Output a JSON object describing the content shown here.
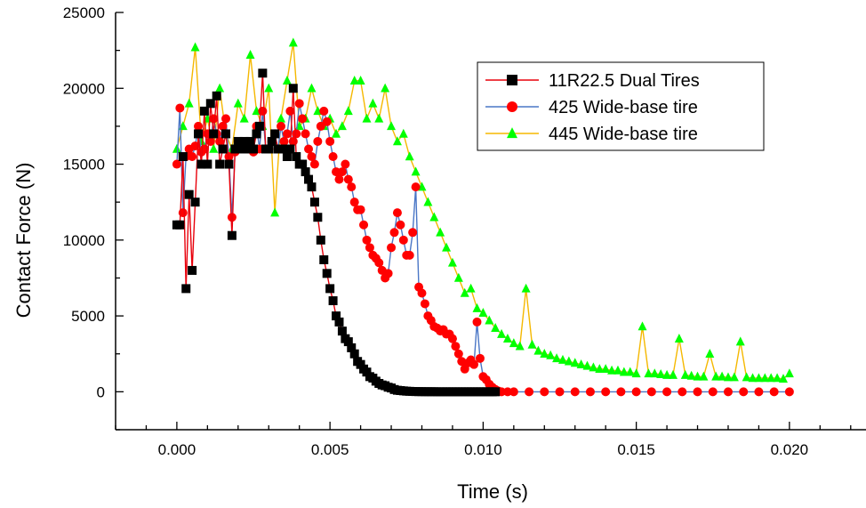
{
  "colors": {
    "axis": "#000000",
    "dual_line": "#e8000b",
    "dual_marker": "#000000",
    "wide425_line": "#4a76c6",
    "wide425_marker": "#ff0000",
    "wide445_line": "#f5b800",
    "wide445_marker": "#00ff00"
  },
  "chart_data": {
    "type": "line",
    "title": "",
    "xlabel": "Time (s)",
    "ylabel": "Contact Force (N)",
    "xlim": [
      -0.002,
      0.0225
    ],
    "ylim": [
      -2500,
      25000
    ],
    "x_ticks": [
      "0.000",
      "0.005",
      "0.010",
      "0.015",
      "0.020"
    ],
    "x_tick_values": [
      0.0,
      0.005,
      0.01,
      0.015,
      0.02
    ],
    "y_ticks": [
      "0",
      "5000",
      "10000",
      "15000",
      "20000",
      "25000"
    ],
    "y_tick_values": [
      0,
      5000,
      10000,
      15000,
      20000,
      25000
    ],
    "legend_position": "top-right",
    "grid": false,
    "series": [
      {
        "name": "11R22.5 Dual Tires",
        "marker": "square",
        "x": [
          0.0,
          0.0001,
          0.0002,
          0.0003,
          0.0004,
          0.0005,
          0.0006,
          0.0007,
          0.0008,
          0.0009,
          0.001,
          0.0011,
          0.0012,
          0.0013,
          0.0014,
          0.0015,
          0.0016,
          0.0017,
          0.0018,
          0.0019,
          0.002,
          0.0021,
          0.0022,
          0.0023,
          0.0024,
          0.0025,
          0.0026,
          0.0027,
          0.0028,
          0.0029,
          0.003,
          0.0031,
          0.0032,
          0.0033,
          0.0034,
          0.0035,
          0.0036,
          0.0037,
          0.0038,
          0.0039,
          0.004,
          0.0041,
          0.0042,
          0.0043,
          0.0044,
          0.0045,
          0.0046,
          0.0047,
          0.0048,
          0.0049,
          0.005,
          0.0051,
          0.0052,
          0.0053,
          0.0054,
          0.0055,
          0.0056,
          0.0057,
          0.0058,
          0.0059,
          0.006,
          0.0061,
          0.0062,
          0.0063,
          0.0064,
          0.0065,
          0.0066,
          0.0067,
          0.0068,
          0.0069,
          0.007,
          0.0071,
          0.0072,
          0.0073,
          0.0074,
          0.0075,
          0.0076,
          0.0077,
          0.0078,
          0.0079,
          0.008,
          0.0081,
          0.0082,
          0.0083,
          0.0084,
          0.0085,
          0.0086,
          0.0087,
          0.0088,
          0.0089,
          0.009,
          0.0091,
          0.0092,
          0.0093,
          0.0094,
          0.0095,
          0.0096,
          0.0097,
          0.0098,
          0.0099,
          0.01,
          0.0101,
          0.0102,
          0.0103,
          0.0104
        ],
        "y": [
          11000,
          11000,
          15500,
          6800,
          13000,
          8000,
          12500,
          17000,
          15000,
          18500,
          15000,
          19000,
          17000,
          19500,
          15000,
          16000,
          17000,
          15000,
          10300,
          16000,
          16500,
          16000,
          16500,
          16000,
          16500,
          16000,
          17000,
          17500,
          21000,
          16000,
          16000,
          16500,
          17000,
          16000,
          16000,
          16000,
          15500,
          16000,
          20000,
          15500,
          15000,
          15000,
          14500,
          14000,
          13500,
          12500,
          11500,
          10000,
          8700,
          7800,
          6800,
          6000,
          5000,
          4600,
          4000,
          3500,
          3300,
          2900,
          2500,
          2000,
          1800,
          1500,
          1300,
          1000,
          900,
          700,
          550,
          450,
          400,
          300,
          250,
          150,
          100,
          80,
          60,
          40,
          30,
          20,
          15,
          10,
          10,
          5,
          5,
          5,
          5,
          0,
          0,
          0,
          0,
          0,
          0,
          0,
          0,
          0,
          0,
          0,
          0,
          0,
          0,
          0,
          0,
          0,
          0,
          0,
          0
        ]
      },
      {
        "name": "425 Wide-base tire",
        "marker": "circle",
        "x": [
          0.0,
          0.0001,
          0.0002,
          0.0003,
          0.0004,
          0.0005,
          0.0006,
          0.0007,
          0.0008,
          0.0009,
          0.001,
          0.0011,
          0.0012,
          0.0013,
          0.0014,
          0.0015,
          0.0016,
          0.0017,
          0.0018,
          0.0019,
          0.002,
          0.0021,
          0.0022,
          0.0023,
          0.0024,
          0.0025,
          0.0026,
          0.0027,
          0.0028,
          0.0029,
          0.003,
          0.0031,
          0.0032,
          0.0033,
          0.0034,
          0.0035,
          0.0036,
          0.0037,
          0.0038,
          0.0039,
          0.004,
          0.0041,
          0.0042,
          0.0043,
          0.0044,
          0.0045,
          0.0046,
          0.0047,
          0.0048,
          0.0049,
          0.005,
          0.0051,
          0.0052,
          0.0053,
          0.0054,
          0.0055,
          0.0056,
          0.0057,
          0.0058,
          0.0059,
          0.006,
          0.0061,
          0.0062,
          0.0063,
          0.0064,
          0.0065,
          0.0066,
          0.0067,
          0.0068,
          0.0069,
          0.007,
          0.0071,
          0.0072,
          0.0073,
          0.0074,
          0.0075,
          0.0076,
          0.0077,
          0.0078,
          0.0079,
          0.008,
          0.0081,
          0.0082,
          0.0083,
          0.0084,
          0.0085,
          0.0086,
          0.0087,
          0.0088,
          0.0089,
          0.009,
          0.0091,
          0.0092,
          0.0093,
          0.0094,
          0.0095,
          0.0096,
          0.0097,
          0.0098,
          0.0099,
          0.01,
          0.0101,
          0.0102,
          0.0103,
          0.0104,
          0.0105,
          0.0106,
          0.0108,
          0.011,
          0.0115,
          0.012,
          0.0125,
          0.013,
          0.0135,
          0.014,
          0.0145,
          0.015,
          0.0155,
          0.016,
          0.0165,
          0.017,
          0.0175,
          0.018,
          0.0185,
          0.019,
          0.0195,
          0.02
        ],
        "y": [
          15000,
          18700,
          11800,
          15500,
          16000,
          15500,
          16200,
          17500,
          15800,
          16000,
          17000,
          16500,
          18000,
          17000,
          16500,
          17500,
          18000,
          15500,
          11500,
          15800,
          16500,
          16000,
          16300,
          16000,
          16500,
          15800,
          17500,
          16000,
          18500,
          16000,
          16000,
          16500,
          17000,
          16000,
          17500,
          16500,
          17000,
          18500,
          16500,
          17000,
          19000,
          18000,
          17000,
          16000,
          15500,
          15000,
          16500,
          17500,
          18500,
          17800,
          16500,
          15500,
          14500,
          14000,
          14500,
          15000,
          14000,
          13500,
          12500,
          12000,
          12000,
          11000,
          10000,
          9500,
          9000,
          8800,
          8500,
          8000,
          7500,
          7800,
          9500,
          10500,
          11800,
          11000,
          10000,
          9000,
          9000,
          10500,
          13500,
          6900,
          6500,
          5800,
          5000,
          4700,
          4300,
          4200,
          4000,
          4100,
          3800,
          3800,
          3500,
          3000,
          2500,
          2000,
          1500,
          1900,
          2100,
          1800,
          4600,
          2200,
          1000,
          800,
          500,
          300,
          150,
          50,
          0,
          0,
          0,
          0,
          0,
          0,
          0,
          0,
          0,
          0,
          0,
          0,
          0,
          0,
          0,
          0,
          0,
          0,
          0,
          0,
          0
        ]
      },
      {
        "name": "445 Wide-base tire",
        "marker": "triangle",
        "x": [
          0.0,
          0.0002,
          0.0004,
          0.0006,
          0.0008,
          0.001,
          0.0012,
          0.0014,
          0.0016,
          0.0018,
          0.002,
          0.0022,
          0.0024,
          0.0026,
          0.0028,
          0.003,
          0.0032,
          0.0034,
          0.0036,
          0.0038,
          0.004,
          0.0042,
          0.0044,
          0.0046,
          0.0048,
          0.005,
          0.0052,
          0.0054,
          0.0056,
          0.0058,
          0.006,
          0.0062,
          0.0064,
          0.0066,
          0.0068,
          0.007,
          0.0072,
          0.0074,
          0.0076,
          0.0078,
          0.008,
          0.0082,
          0.0084,
          0.0086,
          0.0088,
          0.009,
          0.0092,
          0.0094,
          0.0096,
          0.0098,
          0.01,
          0.0102,
          0.0104,
          0.0106,
          0.0108,
          0.011,
          0.0112,
          0.0114,
          0.0116,
          0.0118,
          0.012,
          0.0122,
          0.0124,
          0.0126,
          0.0128,
          0.013,
          0.0132,
          0.0134,
          0.0136,
          0.0138,
          0.014,
          0.0142,
          0.0144,
          0.0146,
          0.0148,
          0.015,
          0.0152,
          0.0154,
          0.0156,
          0.0158,
          0.016,
          0.0162,
          0.0164,
          0.0166,
          0.0168,
          0.017,
          0.0172,
          0.0174,
          0.0176,
          0.0178,
          0.018,
          0.0182,
          0.0184,
          0.0186,
          0.0188,
          0.019,
          0.0192,
          0.0194,
          0.0196,
          0.0198,
          0.02
        ],
        "y": [
          16000,
          17500,
          19000,
          22700,
          16500,
          18000,
          16000,
          20000,
          17000,
          16000,
          19000,
          18000,
          22200,
          18500,
          17500,
          20000,
          11800,
          18000,
          20500,
          23000,
          17500,
          18000,
          20000,
          18500,
          17500,
          18000,
          17000,
          17500,
          18500,
          20500,
          20500,
          18000,
          19000,
          18000,
          20000,
          17500,
          16500,
          17000,
          15500,
          14500,
          13500,
          12500,
          11500,
          10500,
          9500,
          8500,
          7500,
          6500,
          6800,
          5500,
          5200,
          4700,
          4200,
          3800,
          3500,
          3200,
          3000,
          6800,
          3100,
          2700,
          2500,
          2400,
          2200,
          2100,
          2000,
          1900,
          1800,
          1700,
          1600,
          1500,
          1500,
          1400,
          1400,
          1300,
          1300,
          1200,
          4300,
          1200,
          1200,
          1150,
          1100,
          1100,
          3500,
          1100,
          1050,
          1000,
          1000,
          2500,
          1000,
          1000,
          950,
          950,
          3300,
          950,
          900,
          900,
          900,
          900,
          900,
          850,
          1200
        ]
      }
    ]
  }
}
